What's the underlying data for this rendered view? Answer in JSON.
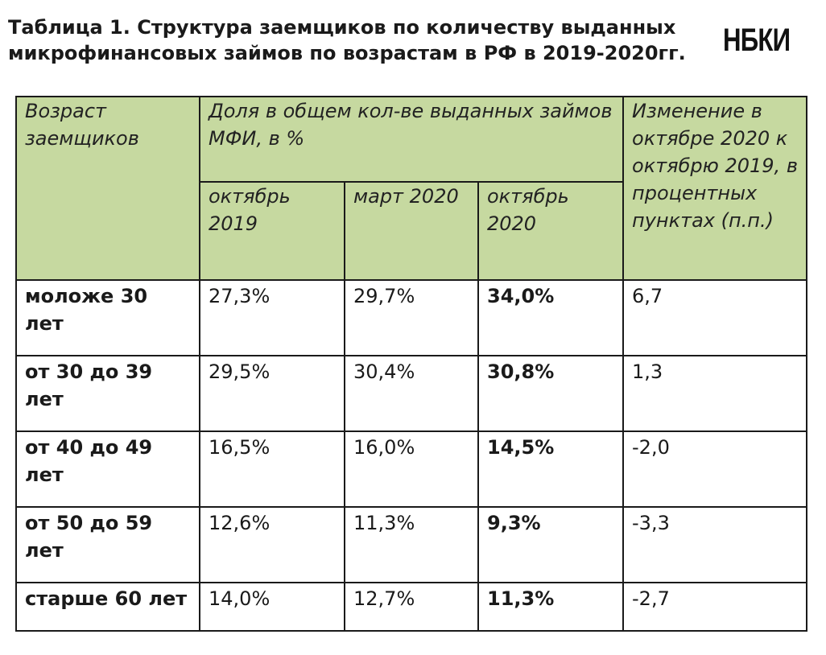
{
  "header": {
    "title_line1": "Таблица 1. Структура заемщиков по количеству выданных",
    "title_line2": "микрофинансовых займов по возрастам в РФ в 2019-2020гг.",
    "logo": "НБКИ"
  },
  "table": {
    "age_header": "Возраст заемщиков",
    "share_header": "Доля в общем кол-ве выданных займов МФИ, в %",
    "change_header": "Изменение в октябре 2020 к октябрю 2019, в процентных пунктах (п.п.)",
    "periods": [
      "октябрь 2019",
      "март 2020",
      "октябрь 2020"
    ],
    "rows": [
      {
        "age": "моложе 30 лет",
        "oct2019": "27,3%",
        "mar2020": "29,7%",
        "oct2020": "34,0%",
        "change": "6,7"
      },
      {
        "age": "от 30 до 39 лет",
        "oct2019": "29,5%",
        "mar2020": "30,4%",
        "oct2020": "30,8%",
        "change": "1,3"
      },
      {
        "age": "от 40 до 49 лет",
        "oct2019": "16,5%",
        "mar2020": "16,0%",
        "oct2020": "14,5%",
        "change": "-2,0"
      },
      {
        "age": "от 50 до 59 лет",
        "oct2019": "12,6%",
        "mar2020": "11,3%",
        "oct2020": "9,3%",
        "change": "-3,3"
      },
      {
        "age": "старше 60 лет",
        "oct2019": "14,0%",
        "mar2020": "12,7%",
        "oct2020": "11,3%",
        "change": "-2,7"
      }
    ]
  },
  "colors": {
    "header_fill": "#c6d9a0",
    "border": "#1a1a1a",
    "background": "#ffffff"
  }
}
